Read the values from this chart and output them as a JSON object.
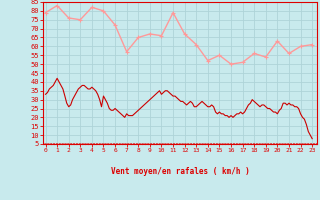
{
  "xlabel": "Vent moyen/en rafales ( km/h )",
  "bg_color": "#c8eaed",
  "grid_color": "#aed4d8",
  "label_color": "#dd0000",
  "spine_color": "#dd0000",
  "ylim": [
    5,
    85
  ],
  "yticks": [
    5,
    10,
    15,
    20,
    25,
    30,
    35,
    40,
    45,
    50,
    55,
    60,
    65,
    70,
    75,
    80,
    85
  ],
  "xlim": [
    -0.2,
    23.4
  ],
  "xticks": [
    0,
    1,
    2,
    3,
    4,
    5,
    6,
    7,
    8,
    9,
    10,
    11,
    12,
    13,
    14,
    15,
    16,
    17,
    18,
    19,
    20,
    21,
    22,
    23
  ],
  "wind_mean_x": [
    0.0,
    0.17,
    0.33,
    0.5,
    0.67,
    0.83,
    1.0,
    1.17,
    1.33,
    1.5,
    1.67,
    1.83,
    2.0,
    2.17,
    2.33,
    2.5,
    2.67,
    2.83,
    3.0,
    3.17,
    3.33,
    3.5,
    3.67,
    3.83,
    4.0,
    4.17,
    4.33,
    4.5,
    4.67,
    4.83,
    5.0,
    5.17,
    5.33,
    5.5,
    5.67,
    5.83,
    6.0,
    6.17,
    6.33,
    6.5,
    6.67,
    6.83,
    7.0,
    7.17,
    7.33,
    7.5,
    7.67,
    7.83,
    8.0,
    8.17,
    8.33,
    8.5,
    8.67,
    8.83,
    9.0,
    9.17,
    9.33,
    9.5,
    9.67,
    9.83,
    10.0,
    10.17,
    10.33,
    10.5,
    10.67,
    10.83,
    11.0,
    11.17,
    11.33,
    11.5,
    11.67,
    11.83,
    12.0,
    12.17,
    12.33,
    12.5,
    12.67,
    12.83,
    13.0,
    13.17,
    13.33,
    13.5,
    13.67,
    13.83,
    14.0,
    14.17,
    14.33,
    14.5,
    14.67,
    14.83,
    15.0,
    15.17,
    15.33,
    15.5,
    15.67,
    15.83,
    16.0,
    16.17,
    16.33,
    16.5,
    16.67,
    16.83,
    17.0,
    17.17,
    17.33,
    17.5,
    17.67,
    17.83,
    18.0,
    18.17,
    18.33,
    18.5,
    18.67,
    18.83,
    19.0,
    19.17,
    19.33,
    19.5,
    19.67,
    19.83,
    20.0,
    20.17,
    20.33,
    20.5,
    20.67,
    20.83,
    21.0,
    21.17,
    21.33,
    21.5,
    21.67,
    21.83,
    22.0,
    22.17,
    22.33,
    22.5,
    22.67,
    22.83,
    23.0
  ],
  "wind_mean_y": [
    33,
    34,
    36,
    37,
    38,
    40,
    42,
    40,
    38,
    36,
    32,
    28,
    26,
    27,
    30,
    32,
    34,
    36,
    37,
    38,
    38,
    37,
    36,
    36,
    37,
    36,
    35,
    33,
    30,
    26,
    32,
    30,
    28,
    25,
    24,
    24,
    25,
    24,
    23,
    22,
    21,
    20,
    22,
    21,
    21,
    21,
    22,
    23,
    24,
    25,
    26,
    27,
    28,
    29,
    30,
    31,
    32,
    33,
    34,
    35,
    33,
    34,
    35,
    35,
    34,
    33,
    32,
    32,
    31,
    30,
    29,
    29,
    28,
    27,
    28,
    29,
    28,
    26,
    26,
    27,
    28,
    29,
    28,
    27,
    26,
    26,
    27,
    26,
    23,
    22,
    23,
    22,
    22,
    21,
    21,
    20,
    21,
    20,
    21,
    22,
    22,
    23,
    22,
    23,
    25,
    27,
    28,
    30,
    29,
    28,
    27,
    26,
    27,
    27,
    26,
    25,
    25,
    24,
    23,
    23,
    22,
    24,
    25,
    28,
    28,
    27,
    28,
    27,
    27,
    26,
    26,
    25,
    22,
    20,
    19,
    16,
    12,
    10,
    8
  ],
  "wind_gust_x": [
    0,
    1,
    2,
    3,
    4,
    5,
    6,
    7,
    8,
    9,
    10,
    11,
    12,
    13,
    14,
    15,
    16,
    17,
    18,
    19,
    20,
    21,
    22,
    23
  ],
  "wind_gust_y": [
    79,
    83,
    76,
    75,
    82,
    80,
    72,
    57,
    65,
    67,
    66,
    79,
    67,
    61,
    52,
    55,
    50,
    51,
    56,
    54,
    63,
    56,
    60,
    61
  ],
  "mean_color": "#cc0000",
  "gust_color": "#ff9999",
  "mean_lw": 0.8,
  "gust_lw": 1.0,
  "gust_markersize": 3.5,
  "ytick_fontsize": 5,
  "xtick_fontsize": 4.5,
  "xlabel_fontsize": 5.5
}
